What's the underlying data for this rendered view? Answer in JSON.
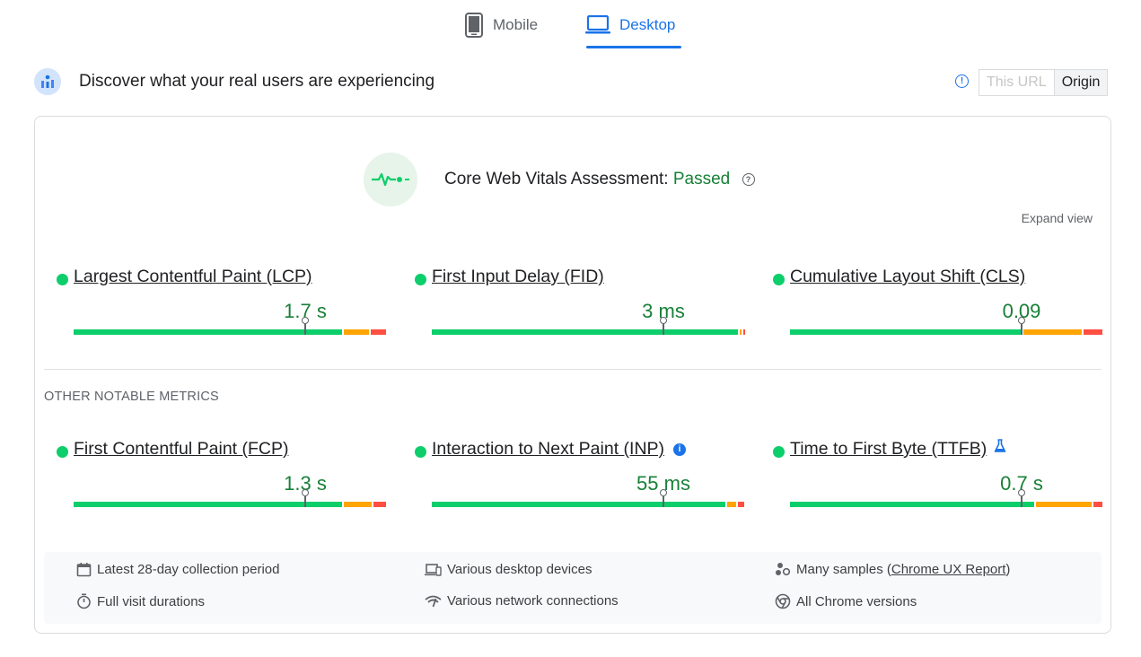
{
  "tabs": [
    {
      "label": "Mobile",
      "icon": "phone-icon",
      "active": false
    },
    {
      "label": "Desktop",
      "icon": "laptop-icon",
      "active": true
    }
  ],
  "header": {
    "title": "Discover what your real users are experiencing",
    "toggle": {
      "this_url": "This URL",
      "origin": "Origin",
      "selected": "Origin"
    }
  },
  "assessment": {
    "label": "Core Web Vitals Assessment:",
    "status": "Passed",
    "expand_label": "Expand view"
  },
  "core_metrics": [
    {
      "name": "Largest Contentful Paint (LCP)",
      "value": "1.7 s",
      "status": "good",
      "distribution": {
        "good": 0.87,
        "needs_improvement": 0.08,
        "poor": 0.05
      }
    },
    {
      "name": "First Input Delay (FID)",
      "value": "3 ms",
      "status": "good",
      "distribution": {
        "good": 0.99,
        "needs_improvement": 0.005,
        "poor": 0.005
      }
    },
    {
      "name": "Cumulative Layout Shift (CLS)",
      "value": "0.09",
      "status": "good",
      "distribution": {
        "good": 0.75,
        "needs_improvement": 0.19,
        "poor": 0.06
      }
    }
  ],
  "other_heading": "OTHER NOTABLE METRICS",
  "other_metrics": [
    {
      "name": "First Contentful Paint (FCP)",
      "value": "1.3 s",
      "status": "good",
      "extra_icon": null,
      "distribution": {
        "good": 0.87,
        "needs_improvement": 0.09,
        "poor": 0.04
      }
    },
    {
      "name": "Interaction to Next Paint (INP)",
      "value": "55 ms",
      "status": "good",
      "extra_icon": "info-icon",
      "distribution": {
        "good": 0.95,
        "needs_improvement": 0.03,
        "poor": 0.02
      }
    },
    {
      "name": "Time to First Byte (TTFB)",
      "value": "0.7 s",
      "status": "good",
      "extra_icon": "flask-icon",
      "distribution": {
        "good": 0.79,
        "needs_improvement": 0.18,
        "poor": 0.03
      }
    }
  ],
  "footer": {
    "collection_period": "Latest 28-day collection period",
    "devices": "Various desktop devices",
    "samples_prefix": "Many samples (",
    "samples_link": "Chrome UX Report",
    "samples_suffix": ")",
    "durations": "Full visit durations",
    "network": "Various network connections",
    "chrome_versions": "All Chrome versions"
  },
  "colors": {
    "accent": "#1a73e8",
    "good": "#0cce6b",
    "needs_improvement": "#ffa400",
    "poor": "#ff4e42",
    "passed_text": "#188038"
  }
}
